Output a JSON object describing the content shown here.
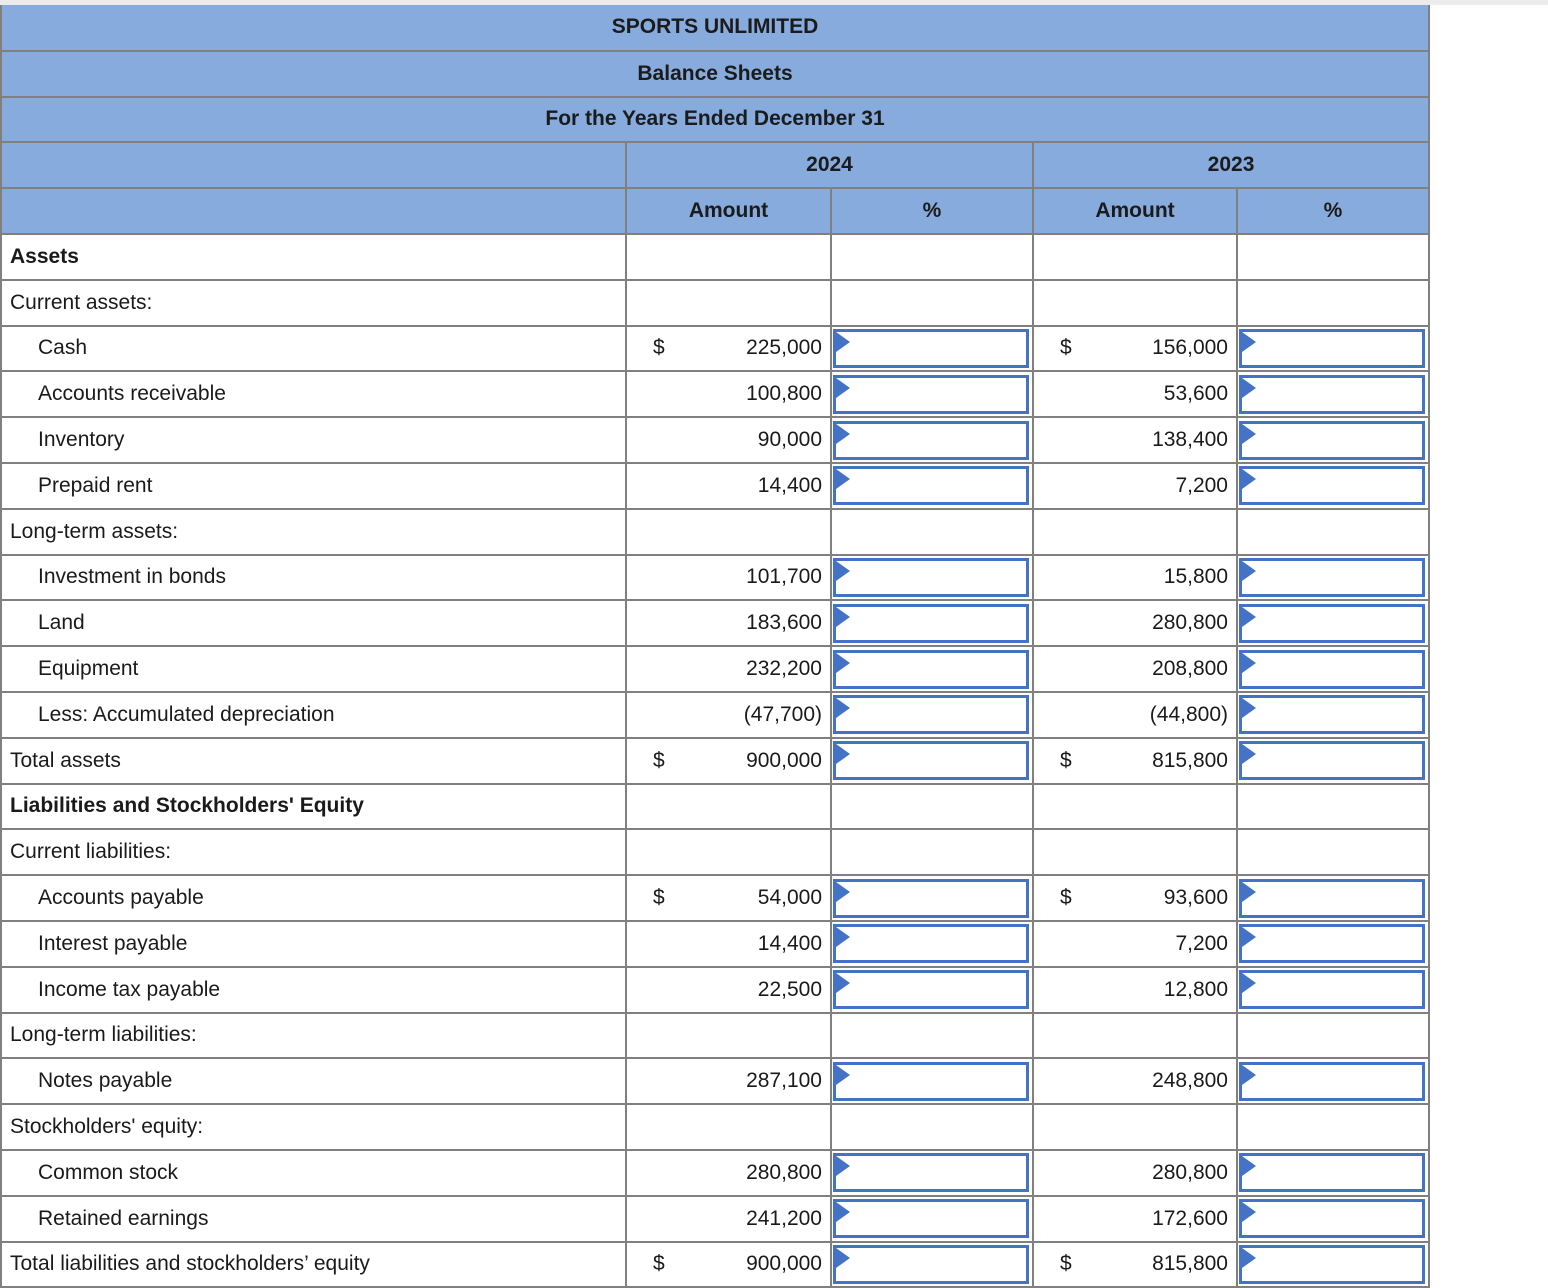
{
  "header": {
    "title": "SPORTS UNLIMITED",
    "subtitle": "Balance Sheets",
    "period": "For the Years Ended December 31",
    "years": [
      "2024",
      "2023"
    ],
    "amount_label": "Amount",
    "percent_label": "%"
  },
  "symbols": {
    "dollar_sign": "$"
  },
  "colors": {
    "header_blue": "#86abdc",
    "grid_gray": "#808080",
    "input_border_blue": "#4472c4",
    "total_border_black": "#000000",
    "top_strip_gray": "#ececec",
    "text": "#1a1a1a"
  },
  "percent_inputs": {
    "value": "",
    "placeholder": ""
  },
  "rows": [
    {
      "label": "Assets",
      "bold": true,
      "indent": false,
      "dollar_2024": false,
      "amount_2024": "",
      "dollar_2023": false,
      "amount_2023": "",
      "has_inputs": false,
      "black_top": false,
      "double_bottom": false
    },
    {
      "label": "Current assets:",
      "bold": false,
      "indent": false,
      "dollar_2024": false,
      "amount_2024": "",
      "dollar_2023": false,
      "amount_2023": "",
      "has_inputs": false,
      "black_top": false,
      "double_bottom": false
    },
    {
      "label": "Cash",
      "bold": false,
      "indent": true,
      "dollar_2024": true,
      "amount_2024": "225,000",
      "dollar_2023": true,
      "amount_2023": "156,000",
      "has_inputs": true,
      "black_top": false,
      "double_bottom": false
    },
    {
      "label": "Accounts receivable",
      "bold": false,
      "indent": true,
      "dollar_2024": false,
      "amount_2024": "100,800",
      "dollar_2023": false,
      "amount_2023": "53,600",
      "has_inputs": true,
      "black_top": false,
      "double_bottom": false
    },
    {
      "label": "Inventory",
      "bold": false,
      "indent": true,
      "dollar_2024": false,
      "amount_2024": "90,000",
      "dollar_2023": false,
      "amount_2023": "138,400",
      "has_inputs": true,
      "black_top": false,
      "double_bottom": false
    },
    {
      "label": "Prepaid rent",
      "bold": false,
      "indent": true,
      "dollar_2024": false,
      "amount_2024": "14,400",
      "dollar_2023": false,
      "amount_2023": "7,200",
      "has_inputs": true,
      "black_top": false,
      "double_bottom": false
    },
    {
      "label": "Long-term assets:",
      "bold": false,
      "indent": false,
      "dollar_2024": false,
      "amount_2024": "",
      "dollar_2023": false,
      "amount_2023": "",
      "has_inputs": false,
      "black_top": false,
      "double_bottom": false
    },
    {
      "label": "Investment in bonds",
      "bold": false,
      "indent": true,
      "dollar_2024": false,
      "amount_2024": "101,700",
      "dollar_2023": false,
      "amount_2023": "15,800",
      "has_inputs": true,
      "black_top": false,
      "double_bottom": false
    },
    {
      "label": "Land",
      "bold": false,
      "indent": true,
      "dollar_2024": false,
      "amount_2024": "183,600",
      "dollar_2023": false,
      "amount_2023": "280,800",
      "has_inputs": true,
      "black_top": false,
      "double_bottom": false
    },
    {
      "label": "Equipment",
      "bold": false,
      "indent": true,
      "dollar_2024": false,
      "amount_2024": "232,200",
      "dollar_2023": false,
      "amount_2023": "208,800",
      "has_inputs": true,
      "black_top": false,
      "double_bottom": false
    },
    {
      "label": "Less: Accumulated depreciation",
      "bold": false,
      "indent": true,
      "dollar_2024": false,
      "amount_2024": "(47,700)",
      "dollar_2023": false,
      "amount_2023": "(44,800)",
      "has_inputs": true,
      "black_top": false,
      "double_bottom": false
    },
    {
      "label": "Total assets",
      "bold": false,
      "indent": false,
      "dollar_2024": true,
      "amount_2024": "900,000",
      "dollar_2023": true,
      "amount_2023": "815,800",
      "has_inputs": true,
      "black_top": true,
      "double_bottom": true
    },
    {
      "label": "Liabilities and Stockholders' Equity",
      "bold": true,
      "indent": false,
      "dollar_2024": false,
      "amount_2024": "",
      "dollar_2023": false,
      "amount_2023": "",
      "has_inputs": false,
      "black_top": false,
      "double_bottom": false
    },
    {
      "label": "Current liabilities:",
      "bold": false,
      "indent": false,
      "dollar_2024": false,
      "amount_2024": "",
      "dollar_2023": false,
      "amount_2023": "",
      "has_inputs": false,
      "black_top": false,
      "double_bottom": false
    },
    {
      "label": "Accounts payable",
      "bold": false,
      "indent": true,
      "dollar_2024": true,
      "amount_2024": "54,000",
      "dollar_2023": true,
      "amount_2023": "93,600",
      "has_inputs": true,
      "black_top": false,
      "double_bottom": false
    },
    {
      "label": "Interest payable",
      "bold": false,
      "indent": true,
      "dollar_2024": false,
      "amount_2024": "14,400",
      "dollar_2023": false,
      "amount_2023": "7,200",
      "has_inputs": true,
      "black_top": false,
      "double_bottom": false
    },
    {
      "label": "Income tax payable",
      "bold": false,
      "indent": true,
      "dollar_2024": false,
      "amount_2024": "22,500",
      "dollar_2023": false,
      "amount_2023": "12,800",
      "has_inputs": true,
      "black_top": false,
      "double_bottom": false
    },
    {
      "label": "Long-term liabilities:",
      "bold": false,
      "indent": false,
      "dollar_2024": false,
      "amount_2024": "",
      "dollar_2023": false,
      "amount_2023": "",
      "has_inputs": false,
      "black_top": false,
      "double_bottom": false
    },
    {
      "label": "Notes payable",
      "bold": false,
      "indent": true,
      "dollar_2024": false,
      "amount_2024": "287,100",
      "dollar_2023": false,
      "amount_2023": "248,800",
      "has_inputs": true,
      "black_top": false,
      "double_bottom": false
    },
    {
      "label": "Stockholders' equity:",
      "bold": false,
      "indent": false,
      "dollar_2024": false,
      "amount_2024": "",
      "dollar_2023": false,
      "amount_2023": "",
      "has_inputs": false,
      "black_top": false,
      "double_bottom": false
    },
    {
      "label": "Common stock",
      "bold": false,
      "indent": true,
      "dollar_2024": false,
      "amount_2024": "280,800",
      "dollar_2023": false,
      "amount_2023": "280,800",
      "has_inputs": true,
      "black_top": false,
      "double_bottom": false
    },
    {
      "label": "Retained earnings",
      "bold": false,
      "indent": true,
      "dollar_2024": false,
      "amount_2024": "241,200",
      "dollar_2023": false,
      "amount_2023": "172,600",
      "has_inputs": true,
      "black_top": false,
      "double_bottom": false
    },
    {
      "label": "Total liabilities and stockholders’ equity",
      "bold": false,
      "indent": false,
      "dollar_2024": true,
      "amount_2024": "900,000",
      "dollar_2023": true,
      "amount_2023": "815,800",
      "has_inputs": true,
      "black_top": true,
      "double_bottom": false
    }
  ]
}
